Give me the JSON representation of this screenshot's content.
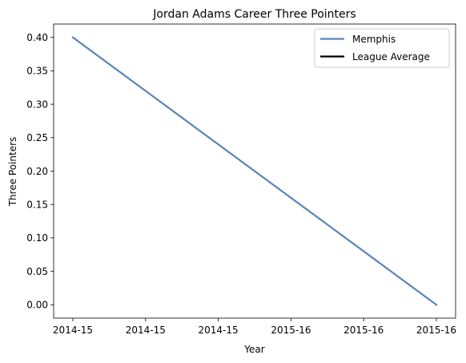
{
  "chart_data": {
    "type": "line",
    "title": "Jordan Adams Career Three Pointers",
    "xlabel": "Year",
    "ylabel": "Three Pointers",
    "x_ticks": [
      "2014-15",
      "2014-15",
      "2014-15",
      "2015-16",
      "2015-16",
      "2015-16"
    ],
    "ylim": [
      -0.02,
      0.42
    ],
    "y_ticks": [
      "0.00",
      "0.05",
      "0.10",
      "0.15",
      "0.20",
      "0.25",
      "0.30",
      "0.35",
      "0.40"
    ],
    "grid": false,
    "legend_position": "top-right",
    "series": [
      {
        "name": "Memphis",
        "color": "#5b84b8",
        "x": [
          "2014-15",
          "2015-16"
        ],
        "y": [
          0.4,
          0.0
        ]
      },
      {
        "name": "League Average",
        "color": "#000000",
        "x": [],
        "y": []
      }
    ]
  }
}
